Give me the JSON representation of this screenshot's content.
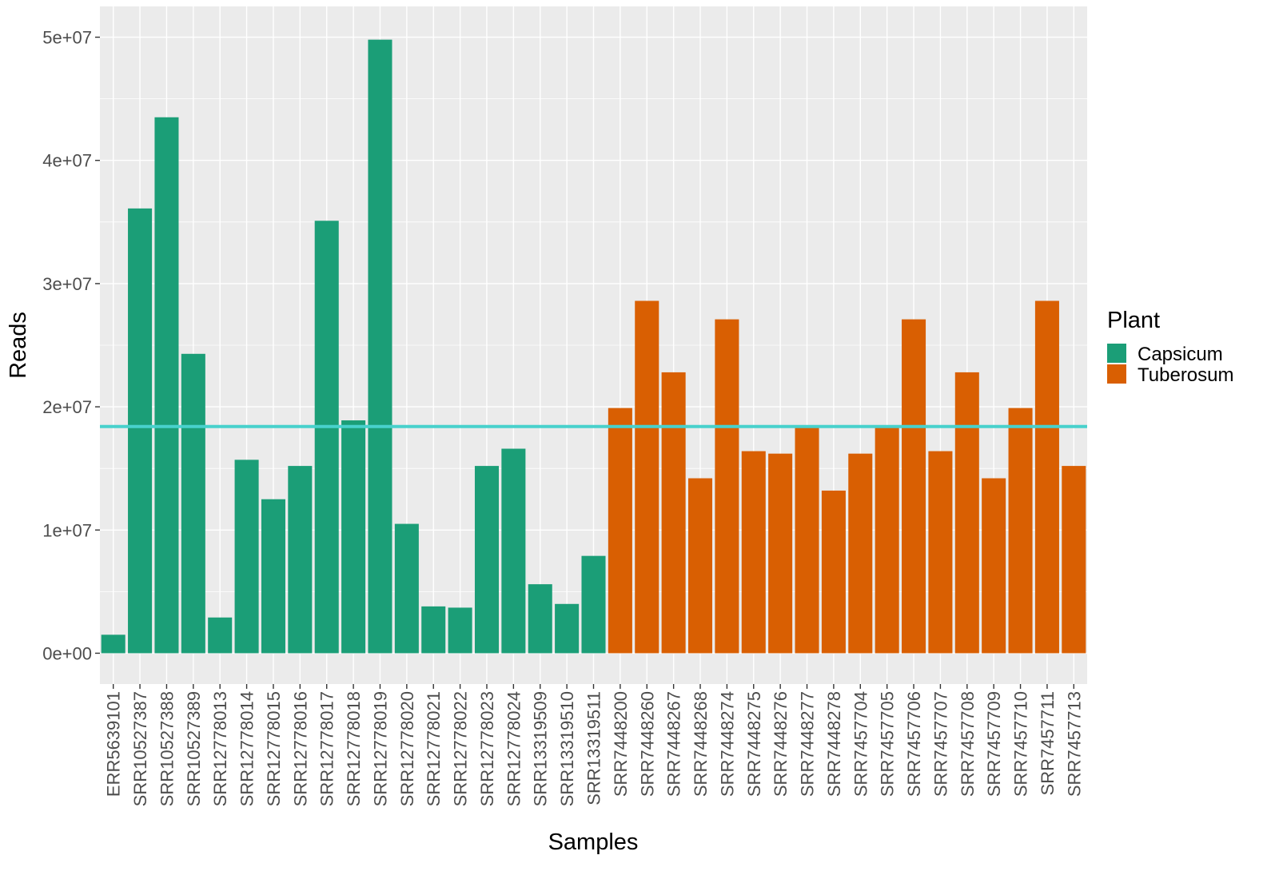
{
  "chart_data": {
    "type": "bar",
    "xlabel": "Samples",
    "ylabel": "Reads",
    "ylim": [
      -2500000,
      52500000
    ],
    "yticks": [
      0,
      10000000,
      20000000,
      30000000,
      40000000,
      50000000
    ],
    "ytick_labels": [
      "0e+00",
      "1e+07",
      "2e+07",
      "3e+07",
      "4e+07",
      "5e+07"
    ],
    "grid": true,
    "legend": {
      "title": "Plant",
      "position": "right"
    },
    "series": [
      {
        "name": "Capsicum",
        "color": "#1b9e77"
      },
      {
        "name": "Tuberosum",
        "color": "#d95f02"
      }
    ],
    "reference_line": {
      "y": 18400000,
      "color": "#48d1cc"
    },
    "categories": [
      "ERR5639101",
      "SRR10527387",
      "SRR10527388",
      "SRR10527389",
      "SRR12778013",
      "SRR12778014",
      "SRR12778015",
      "SRR12778016",
      "SRR12778017",
      "SRR12778018",
      "SRR12778019",
      "SRR12778020",
      "SRR12778021",
      "SRR12778022",
      "SRR12778023",
      "SRR12778024",
      "SRR13319509",
      "SRR13319510",
      "SRR13319511",
      "SRR7448200",
      "SRR7448260",
      "SRR7448267",
      "SRR7448268",
      "SRR7448274",
      "SRR7448275",
      "SRR7448276",
      "SRR7448277",
      "SRR7448278",
      "SRR7457704",
      "SRR7457705",
      "SRR7457706",
      "SRR7457707",
      "SRR7457708",
      "SRR7457709",
      "SRR7457710",
      "SRR7457711",
      "SRR7457713"
    ],
    "values": [
      1500000,
      36100000,
      43500000,
      24300000,
      2900000,
      15700000,
      12500000,
      15200000,
      35100000,
      18900000,
      49800000,
      10500000,
      3800000,
      3700000,
      15200000,
      16600000,
      5600000,
      4000000,
      7900000,
      19900000,
      28600000,
      22800000,
      14200000,
      27100000,
      16400000,
      16200000,
      18300000,
      13200000,
      16200000,
      18300000,
      27100000,
      16400000,
      22800000,
      14200000,
      19900000,
      28600000,
      15200000
    ],
    "groups": [
      "Capsicum",
      "Capsicum",
      "Capsicum",
      "Capsicum",
      "Capsicum",
      "Capsicum",
      "Capsicum",
      "Capsicum",
      "Capsicum",
      "Capsicum",
      "Capsicum",
      "Capsicum",
      "Capsicum",
      "Capsicum",
      "Capsicum",
      "Capsicum",
      "Capsicum",
      "Capsicum",
      "Capsicum",
      "Tuberosum",
      "Tuberosum",
      "Tuberosum",
      "Tuberosum",
      "Tuberosum",
      "Tuberosum",
      "Tuberosum",
      "Tuberosum",
      "Tuberosum",
      "Tuberosum",
      "Tuberosum",
      "Tuberosum",
      "Tuberosum",
      "Tuberosum",
      "Tuberosum",
      "Tuberosum",
      "Tuberosum",
      "Tuberosum"
    ]
  }
}
